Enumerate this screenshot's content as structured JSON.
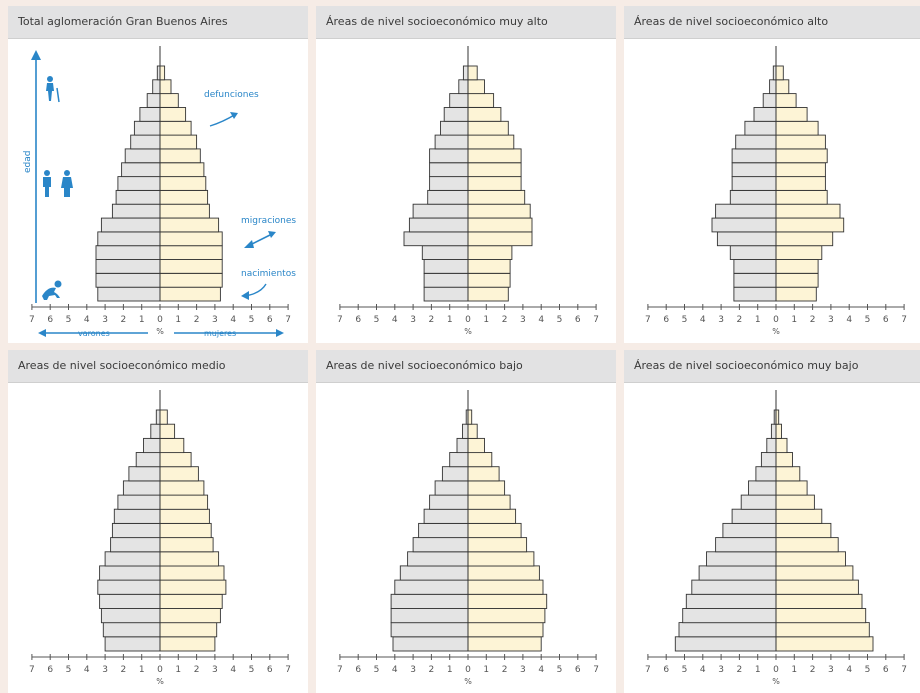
{
  "colors": {
    "male_fill": "#e4e4e4",
    "female_fill": "#fdf4d6",
    "bar_stroke": "#333333",
    "axis": "#555555",
    "accent": "#2a86c8",
    "panel_header": "#e2e2e3",
    "background": "#f6ece6"
  },
  "annotations": {
    "defunciones": "defunciones",
    "migraciones": "migraciones",
    "nacimientos": "nacimientos",
    "edad": "edad",
    "varones": "varones",
    "mujeres": "mujeres",
    "icons": [
      "elderly-person-icon",
      "adult-man-icon",
      "adult-woman-icon",
      "baby-crawling-icon"
    ]
  },
  "chart_data": [
    {
      "type": "bar",
      "subtype": "population-pyramid",
      "title": "Total aglomeración Gran Buenos Aires",
      "x_ticks": [
        "7",
        "6",
        "5",
        "4",
        "3",
        "2",
        "1",
        "0",
        "1",
        "2",
        "3",
        "4",
        "5",
        "6",
        "7"
      ],
      "xlabel": "%",
      "xlim": [
        -7,
        7
      ],
      "age_groups_bottom_to_top": 17,
      "series": [
        {
          "name": "varones",
          "values": [
            3.4,
            3.5,
            3.5,
            3.5,
            3.4,
            3.2,
            2.6,
            2.4,
            2.3,
            2.1,
            1.9,
            1.6,
            1.4,
            1.1,
            0.7,
            0.4,
            0.15
          ]
        },
        {
          "name": "mujeres",
          "values": [
            3.3,
            3.4,
            3.4,
            3.4,
            3.4,
            3.2,
            2.7,
            2.6,
            2.5,
            2.4,
            2.2,
            2.0,
            1.7,
            1.4,
            1.0,
            0.6,
            0.25
          ]
        }
      ]
    },
    {
      "type": "bar",
      "subtype": "population-pyramid",
      "title": "Áreas de nivel socioeconómico muy alto",
      "x_ticks": [
        "7",
        "6",
        "5",
        "4",
        "3",
        "2",
        "1",
        "0",
        "1",
        "2",
        "3",
        "4",
        "5",
        "6",
        "7"
      ],
      "xlabel": "%",
      "xlim": [
        -7,
        7
      ],
      "series": [
        {
          "name": "varones",
          "values": [
            2.4,
            2.4,
            2.4,
            2.5,
            3.5,
            3.2,
            3.0,
            2.2,
            2.1,
            2.1,
            2.1,
            1.8,
            1.5,
            1.3,
            1.0,
            0.5,
            0.25
          ]
        },
        {
          "name": "mujeres",
          "values": [
            2.2,
            2.3,
            2.3,
            2.4,
            3.5,
            3.5,
            3.4,
            3.1,
            2.9,
            2.9,
            2.9,
            2.5,
            2.2,
            1.8,
            1.4,
            0.9,
            0.5
          ]
        }
      ]
    },
    {
      "type": "bar",
      "subtype": "population-pyramid",
      "title": "Áreas de nivel socioeconómico alto",
      "x_ticks": [
        "7",
        "6",
        "5",
        "4",
        "3",
        "2",
        "1",
        "0",
        "1",
        "2",
        "3",
        "4",
        "5",
        "6",
        "7"
      ],
      "xlabel": "%",
      "xlim": [
        -7,
        7
      ],
      "series": [
        {
          "name": "varones",
          "values": [
            2.3,
            2.3,
            2.3,
            2.5,
            3.2,
            3.5,
            3.3,
            2.5,
            2.4,
            2.4,
            2.4,
            2.2,
            1.7,
            1.2,
            0.7,
            0.35,
            0.15
          ]
        },
        {
          "name": "mujeres",
          "values": [
            2.2,
            2.3,
            2.3,
            2.5,
            3.1,
            3.7,
            3.5,
            2.8,
            2.7,
            2.7,
            2.8,
            2.7,
            2.3,
            1.7,
            1.1,
            0.7,
            0.4
          ]
        }
      ]
    },
    {
      "type": "bar",
      "subtype": "population-pyramid",
      "title": "Areas de nivel socioeconómico medio",
      "x_ticks": [
        "7",
        "6",
        "5",
        "4",
        "3",
        "2",
        "1",
        "0",
        "1",
        "2",
        "3",
        "4",
        "5",
        "6",
        "7"
      ],
      "xlabel": "%",
      "xlim": [
        -7,
        7
      ],
      "series": [
        {
          "name": "varones",
          "values": [
            3.0,
            3.1,
            3.2,
            3.3,
            3.4,
            3.3,
            3.0,
            2.7,
            2.6,
            2.5,
            2.3,
            2.0,
            1.7,
            1.3,
            0.9,
            0.5,
            0.2
          ]
        },
        {
          "name": "mujeres",
          "values": [
            3.0,
            3.1,
            3.3,
            3.4,
            3.6,
            3.5,
            3.2,
            2.9,
            2.8,
            2.7,
            2.6,
            2.4,
            2.1,
            1.7,
            1.3,
            0.8,
            0.4
          ]
        }
      ]
    },
    {
      "type": "bar",
      "subtype": "population-pyramid",
      "title": "Areas de nivel socioeconómico bajo",
      "x_ticks": [
        "7",
        "6",
        "5",
        "4",
        "3",
        "2",
        "1",
        "0",
        "1",
        "2",
        "3",
        "4",
        "5",
        "6",
        "7"
      ],
      "xlabel": "%",
      "xlim": [
        -7,
        7
      ],
      "series": [
        {
          "name": "varones",
          "values": [
            4.1,
            4.2,
            4.2,
            4.2,
            4.0,
            3.7,
            3.3,
            3.0,
            2.7,
            2.4,
            2.1,
            1.8,
            1.4,
            1.0,
            0.6,
            0.3,
            0.1
          ]
        },
        {
          "name": "mujeres",
          "values": [
            4.0,
            4.1,
            4.2,
            4.3,
            4.1,
            3.9,
            3.6,
            3.2,
            2.9,
            2.6,
            2.3,
            2.0,
            1.7,
            1.3,
            0.9,
            0.5,
            0.2
          ]
        }
      ]
    },
    {
      "type": "bar",
      "subtype": "population-pyramid",
      "title": "Áreas de nivel socioeconómico muy bajo",
      "x_ticks": [
        "7",
        "6",
        "5",
        "4",
        "3",
        "2",
        "1",
        "0",
        "1",
        "2",
        "3",
        "4",
        "5",
        "6",
        "7"
      ],
      "xlabel": "%",
      "xlim": [
        -7,
        7
      ],
      "series": [
        {
          "name": "varones",
          "values": [
            5.5,
            5.3,
            5.1,
            4.9,
            4.6,
            4.2,
            3.8,
            3.3,
            2.9,
            2.4,
            1.9,
            1.5,
            1.1,
            0.8,
            0.5,
            0.25,
            0.1
          ]
        },
        {
          "name": "mujeres",
          "values": [
            5.3,
            5.1,
            4.9,
            4.7,
            4.5,
            4.2,
            3.8,
            3.4,
            3.0,
            2.5,
            2.1,
            1.7,
            1.3,
            0.9,
            0.6,
            0.3,
            0.15
          ]
        }
      ]
    }
  ]
}
